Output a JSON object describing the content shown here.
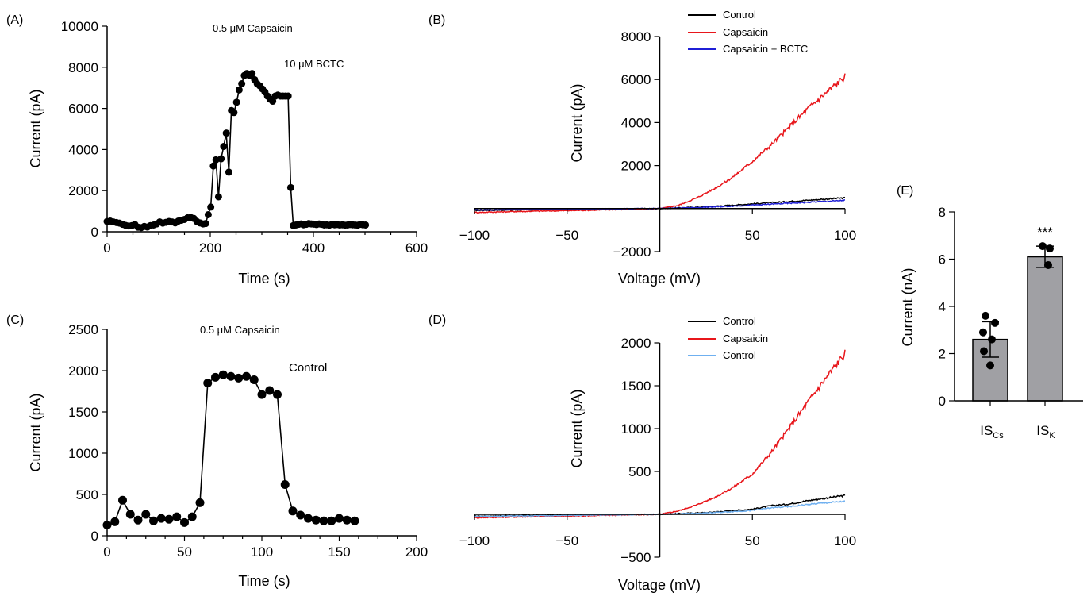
{
  "panel_labels": [
    "(A)",
    "(B)",
    "(C)",
    "(D)",
    "(E)"
  ],
  "chart_data": [
    {
      "panel": "(A)",
      "type": "scatter",
      "title": "",
      "xlabel": "Time (s)",
      "ylabel": "Current (pA)",
      "xlim": [
        0,
        600
      ],
      "ylim": [
        0,
        10000
      ],
      "xticks": [
        0,
        200,
        400,
        600
      ],
      "yticks": [
        0,
        2000,
        4000,
        6000,
        8000,
        10000
      ],
      "annotations": [
        "0.5 μM Capsaicin",
        "10 μM BCTC"
      ],
      "series": [
        {
          "color": "#000000",
          "x": [
            0,
            6,
            12,
            18,
            24,
            30,
            36,
            42,
            48,
            54,
            60,
            66,
            72,
            78,
            84,
            90,
            96,
            102,
            108,
            114,
            120,
            126,
            132,
            138,
            144,
            150,
            156,
            162,
            168,
            174,
            180,
            186,
            191,
            196,
            201,
            206,
            211,
            216,
            221,
            226,
            231,
            236,
            241,
            246,
            251,
            256,
            261,
            266,
            271,
            276,
            281,
            286,
            291,
            296,
            301,
            306,
            311,
            316,
            321,
            326,
            331,
            336,
            341,
            346,
            351,
            356,
            361,
            366,
            371,
            376,
            381,
            386,
            391,
            396,
            401,
            406,
            411,
            416,
            421,
            426,
            431,
            436,
            441,
            446,
            451,
            456,
            461,
            466,
            471,
            476,
            481,
            486,
            491,
            496,
            501
          ],
          "y": [
            500,
            520,
            480,
            450,
            420,
            360,
            310,
            280,
            300,
            350,
            220,
            200,
            260,
            230,
            300,
            330,
            380,
            480,
            420,
            460,
            500,
            480,
            430,
            520,
            560,
            600,
            680,
            700,
            650,
            500,
            430,
            380,
            400,
            830,
            1200,
            3200,
            3500,
            1700,
            3550,
            4150,
            4800,
            2900,
            5900,
            5800,
            6300,
            6900,
            7200,
            7600,
            7700,
            7600,
            7700,
            7400,
            7200,
            7100,
            6950,
            6800,
            6600,
            6450,
            6350,
            6600,
            6650,
            6600,
            6600,
            6600,
            6600,
            2150,
            300,
            330,
            360,
            380,
            340,
            360,
            400,
            380,
            370,
            350,
            380,
            360,
            330,
            340,
            320,
            360,
            340,
            350,
            330,
            340,
            320,
            330,
            350,
            340,
            330,
            320,
            360,
            340,
            330
          ]
        }
      ]
    },
    {
      "panel": "(B)",
      "type": "line",
      "title": "",
      "xlabel": "Voltage (mV)",
      "ylabel": "Current (pA)",
      "xlim": [
        -100,
        100
      ],
      "ylim": [
        -2000,
        8000
      ],
      "xticks": [
        -100,
        -50,
        50,
        100
      ],
      "yticks": [
        -2000,
        2000,
        4000,
        6000,
        8000
      ],
      "legend_position": "top-right",
      "series": [
        {
          "name": "Control",
          "color": "#000000",
          "x": [
            -100,
            -75,
            -50,
            -25,
            0,
            25,
            50,
            75,
            100
          ],
          "y": [
            -80,
            -60,
            -40,
            -20,
            0,
            80,
            220,
            360,
            500
          ]
        },
        {
          "name": "Capsaicin",
          "color": "#e8161b",
          "x": [
            -100,
            -80,
            -60,
            -40,
            -20,
            0,
            10,
            20,
            30,
            40,
            50,
            60,
            70,
            80,
            90,
            100
          ],
          "y": [
            -180,
            -140,
            -110,
            -80,
            -40,
            0,
            150,
            500,
            950,
            1500,
            2200,
            2950,
            3800,
            4650,
            5400,
            6150
          ]
        },
        {
          "name": "Capsaicin + BCTC",
          "color": "#1f1fd6",
          "x": [
            -100,
            -75,
            -50,
            -25,
            0,
            25,
            50,
            75,
            100
          ],
          "y": [
            -60,
            -45,
            -30,
            -15,
            0,
            60,
            160,
            270,
            380
          ]
        }
      ]
    },
    {
      "panel": "(C)",
      "type": "scatter",
      "title": "",
      "xlabel": "Time (s)",
      "ylabel": "Current (pA)",
      "xlim": [
        0,
        200
      ],
      "ylim": [
        0,
        2500
      ],
      "xticks": [
        0,
        50,
        100,
        150,
        200
      ],
      "yticks": [
        0,
        500,
        1000,
        1500,
        2000,
        2500
      ],
      "annotations": [
        "0.5 μM Capsaicin",
        "Control"
      ],
      "series": [
        {
          "color": "#000000",
          "x": [
            0,
            5,
            10,
            15,
            20,
            25,
            30,
            35,
            40,
            45,
            50,
            55,
            60,
            65,
            70,
            75,
            80,
            85,
            90,
            95,
            100,
            105,
            110,
            115,
            120,
            125,
            130,
            135,
            140,
            145,
            150,
            155,
            160
          ],
          "y": [
            130,
            170,
            430,
            260,
            190,
            260,
            180,
            210,
            200,
            230,
            160,
            230,
            400,
            1850,
            1920,
            1950,
            1930,
            1910,
            1930,
            1890,
            1710,
            1760,
            1710,
            620,
            300,
            250,
            210,
            190,
            180,
            180,
            210,
            190,
            180
          ]
        }
      ]
    },
    {
      "panel": "(D)",
      "type": "line",
      "title": "",
      "xlabel": "Voltage (mV)",
      "ylabel": "Current (pA)",
      "xlim": [
        -100,
        100
      ],
      "ylim": [
        -500,
        2000
      ],
      "xticks": [
        -100,
        -50,
        50,
        100
      ],
      "yticks": [
        -500,
        500,
        1000,
        1500,
        2000
      ],
      "legend_position": "top-right",
      "series": [
        {
          "name": "Control",
          "color": "#000000",
          "x": [
            -100,
            -75,
            -50,
            -25,
            0,
            25,
            50,
            60,
            70,
            80,
            90,
            100
          ],
          "y": [
            -20,
            -15,
            -10,
            -5,
            0,
            20,
            60,
            100,
            120,
            160,
            190,
            220
          ]
        },
        {
          "name": "Capsaicin",
          "color": "#e8161b",
          "x": [
            -100,
            -80,
            -60,
            -40,
            -20,
            0,
            10,
            20,
            30,
            40,
            50,
            60,
            70,
            80,
            90,
            100
          ],
          "y": [
            -40,
            -32,
            -24,
            -16,
            -8,
            0,
            40,
            110,
            200,
            320,
            470,
            720,
            1010,
            1310,
            1600,
            1880
          ]
        },
        {
          "name": "Control",
          "color": "#6fb0f0",
          "x": [
            -100,
            -75,
            -50,
            -25,
            0,
            25,
            50,
            60,
            70,
            80,
            90,
            100
          ],
          "y": [
            -25,
            -18,
            -12,
            -6,
            0,
            15,
            45,
            75,
            90,
            115,
            135,
            150
          ]
        }
      ]
    },
    {
      "panel": "(E)",
      "type": "bar",
      "title": "",
      "xlabel": "",
      "ylabel": "Current (nA)",
      "ylim": [
        0,
        8
      ],
      "yticks": [
        0,
        2,
        4,
        6,
        8
      ],
      "categories": [
        "IS_Cs",
        "IS_K"
      ],
      "category_labels": [
        {
          "main": "IS",
          "sub": "Cs"
        },
        {
          "main": "IS",
          "sub": "K"
        }
      ],
      "values": [
        2.6,
        6.1
      ],
      "error": [
        0.75,
        0.45
      ],
      "points": [
        [
          3.6,
          3.3,
          2.9,
          2.6,
          2.1,
          1.5
        ],
        [
          6.55,
          6.45,
          5.75
        ]
      ],
      "bar_color": "#a0a0a4",
      "significance": [
        "",
        "***"
      ]
    }
  ]
}
